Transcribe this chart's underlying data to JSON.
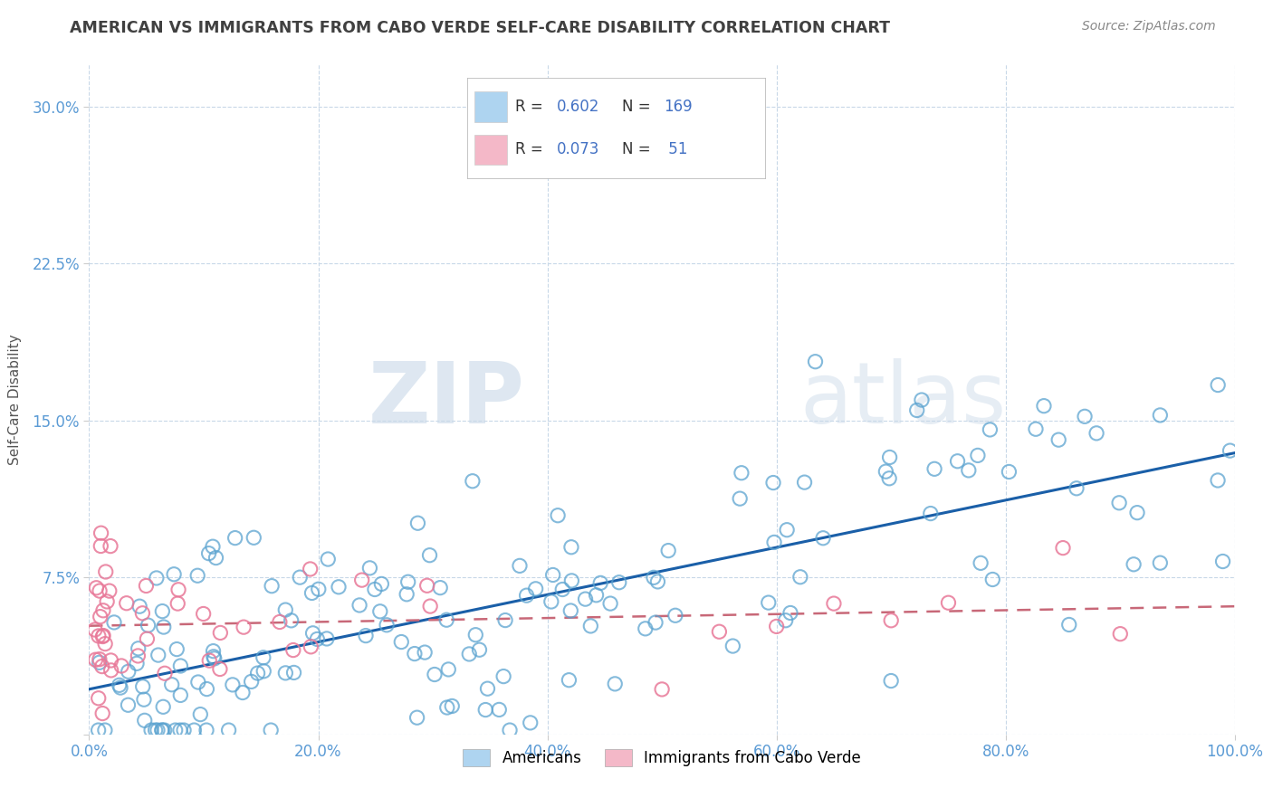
{
  "title": "AMERICAN VS IMMIGRANTS FROM CABO VERDE SELF-CARE DISABILITY CORRELATION CHART",
  "source": "Source: ZipAtlas.com",
  "ylabel": "Self-Care Disability",
  "xlabel": "",
  "legend_labels": [
    "Americans",
    "Immigrants from Cabo Verde"
  ],
  "legend_box_colors": [
    "#aed4f0",
    "#f4b8c8"
  ],
  "scatter_color_americans": "#5ba3d0",
  "scatter_color_cabo": "#e87898",
  "line_color_americans": "#1a5fa8",
  "line_color_cabo": "#c86878",
  "R_americans": 0.602,
  "N_americans": 169,
  "R_cabo": 0.073,
  "N_cabo": 51,
  "xlim": [
    0,
    1.0
  ],
  "ylim": [
    0,
    0.32
  ],
  "xticks": [
    0.0,
    0.2,
    0.4,
    0.6,
    0.8,
    1.0
  ],
  "yticks": [
    0.0,
    0.075,
    0.15,
    0.225,
    0.3
  ],
  "xticklabels": [
    "0.0%",
    "20.0%",
    "40.0%",
    "60.0%",
    "80.0%",
    "100.0%"
  ],
  "yticklabels": [
    "",
    "7.5%",
    "15.0%",
    "22.5%",
    "30.0%"
  ],
  "watermark_zip": "ZIP",
  "watermark_atlas": "atlas",
  "background_color": "#ffffff",
  "grid_color": "#c8d8e8",
  "title_color": "#404040",
  "tick_color": "#5b9bd5",
  "legend_text_color": "#333333",
  "legend_num_color": "#4472c4"
}
